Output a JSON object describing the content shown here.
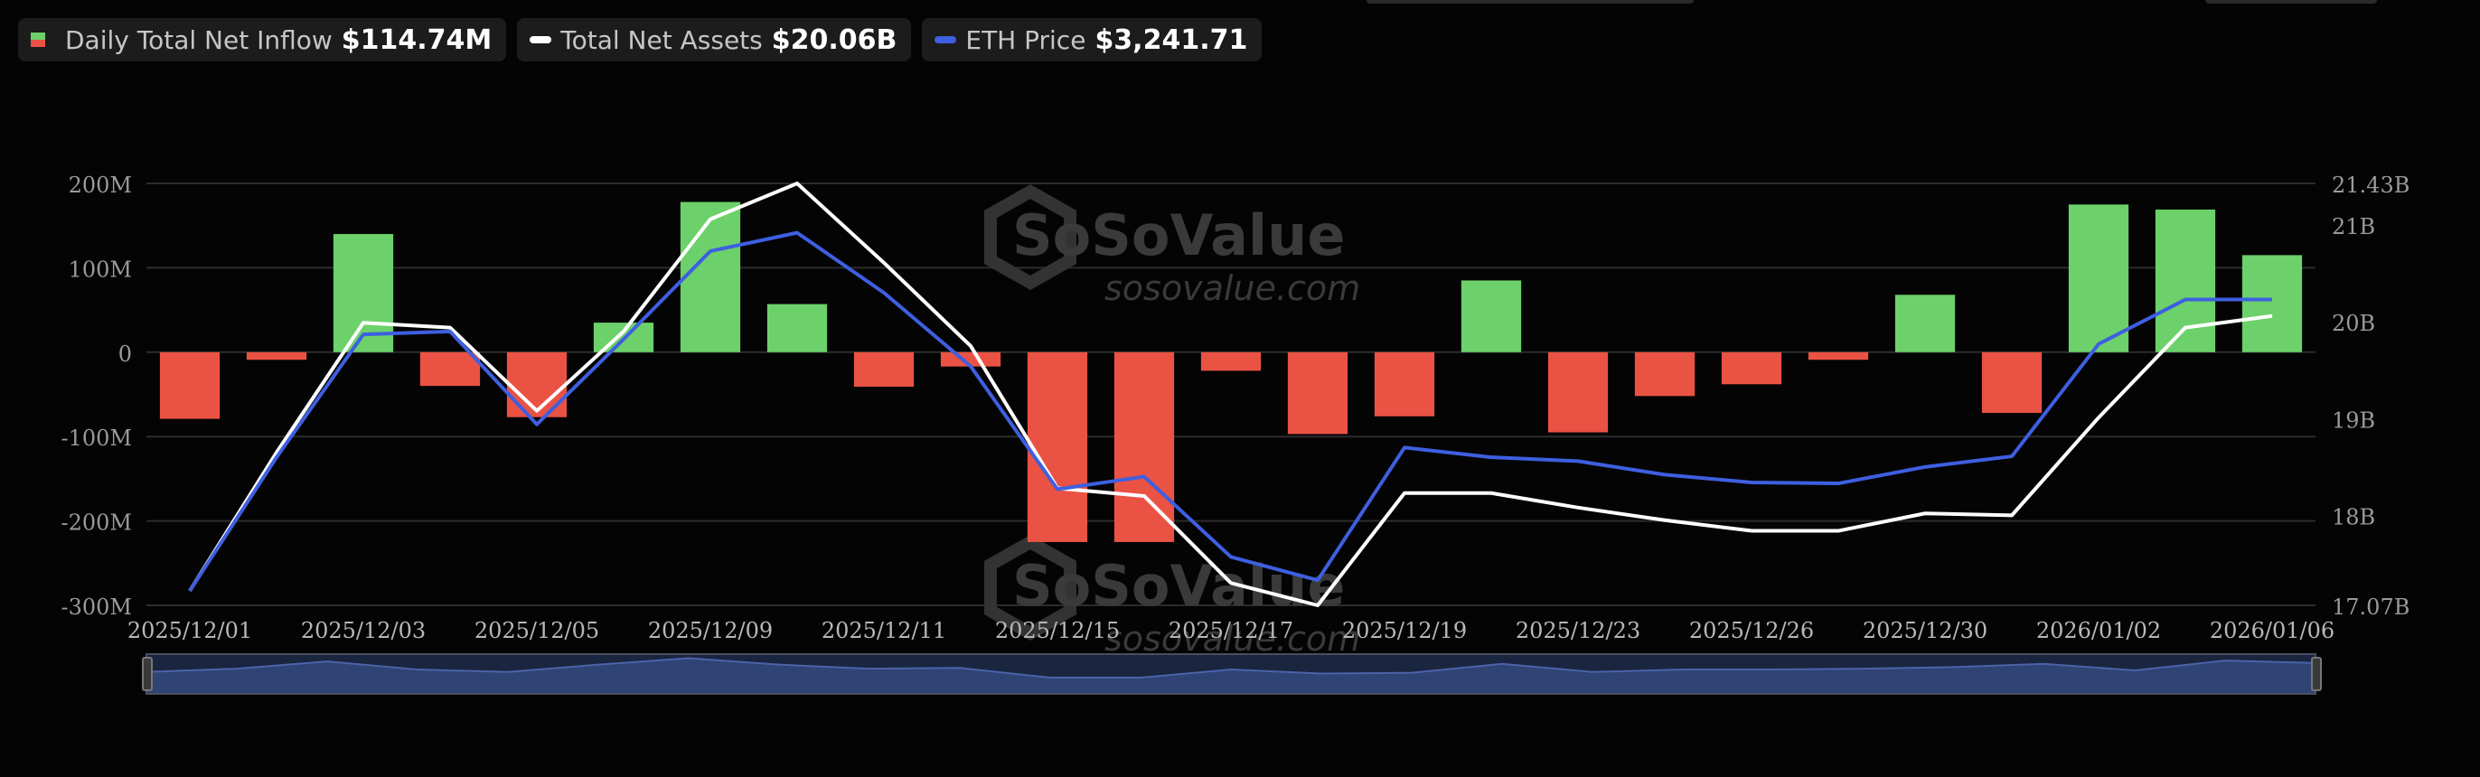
{
  "legend": {
    "inflow": {
      "label": "Daily Total Net Inflow",
      "value": "$114.74M"
    },
    "assets": {
      "label": "Total Net Assets",
      "value": "$20.06B"
    },
    "eth": {
      "label": "ETH Price",
      "value": "$3,241.71"
    }
  },
  "watermark": {
    "brand": "SoSoValue",
    "url": "sosovalue.com"
  },
  "colors": {
    "positive": "#6cd16a",
    "negative": "#ea5244",
    "assets_line": "#ffffff",
    "eth_line": "#3e5fe0",
    "background": "#040404",
    "grid": "#2c2c2c"
  },
  "chart_data": {
    "type": "bar",
    "x_tick_labels": [
      "2025/12/01",
      "2025/12/03",
      "2025/12/05",
      "2025/12/09",
      "2025/12/11",
      "2025/12/15",
      "2025/12/17",
      "2025/12/19",
      "2025/12/23",
      "2025/12/26",
      "2025/12/30",
      "2026/01/02",
      "2026/01/06"
    ],
    "categories": [
      "2025/12/01",
      "2025/12/02",
      "2025/12/03",
      "2025/12/04",
      "2025/12/05",
      "2025/12/08",
      "2025/12/09",
      "2025/12/10",
      "2025/12/11",
      "2025/12/12",
      "2025/12/15",
      "2025/12/16",
      "2025/12/17",
      "2025/12/18",
      "2025/12/19",
      "2025/12/22",
      "2025/12/23",
      "2025/12/24",
      "2025/12/26",
      "2025/12/29",
      "2025/12/30",
      "2025/12/31",
      "2026/01/02",
      "2026/01/05",
      "2026/01/06"
    ],
    "y_left": {
      "ticks": [
        200,
        100,
        0,
        -100,
        -200,
        -300
      ],
      "tick_labels": [
        "200M",
        "100M",
        "0",
        "-100M",
        "-200M",
        "-300M"
      ],
      "range": [
        -300,
        200
      ]
    },
    "y_right": {
      "ticks": [
        21.43,
        21,
        20,
        19,
        18,
        17.07
      ],
      "tick_labels": [
        "21.43B",
        "21B",
        "20B",
        "19B",
        "18B",
        "17.07B"
      ],
      "range": [
        17.07,
        21.43
      ]
    },
    "series": [
      {
        "name": "Daily Total Net Inflow",
        "type": "bar",
        "axis": "left",
        "values": [
          -79,
          -9,
          140,
          -40,
          -77,
          35,
          178,
          57,
          -41,
          -17,
          -225,
          -225,
          -22,
          -97,
          -76,
          85,
          -95,
          -52,
          -38,
          -9,
          68,
          -72,
          175,
          169,
          115
        ]
      },
      {
        "name": "Total Net Assets",
        "type": "line",
        "axis": "right",
        "values": [
          17.22,
          18.65,
          19.99,
          19.94,
          19.08,
          19.9,
          21.06,
          21.43,
          20.61,
          19.75,
          18.28,
          18.2,
          17.3,
          17.07,
          18.23,
          18.23,
          18.08,
          17.95,
          17.84,
          17.84,
          18.02,
          18.0,
          19.01,
          19.94,
          20.06
        ]
      },
      {
        "name": "ETH Price",
        "type": "line",
        "axis": "right",
        "values": [
          17.22,
          18.6,
          19.87,
          19.9,
          18.94,
          19.82,
          20.73,
          20.92,
          20.3,
          19.54,
          18.27,
          18.4,
          17.57,
          17.33,
          18.7,
          18.6,
          18.56,
          18.42,
          18.34,
          18.33,
          18.5,
          18.61,
          19.77,
          20.23,
          20.23
        ]
      }
    ],
    "navigator": {
      "values": [
        19.3,
        19.7,
        20.6,
        19.6,
        19.3,
        20.2,
        21.0,
        20.2,
        19.7,
        19.8,
        18.6,
        18.6,
        19.6,
        19.1,
        19.2,
        20.3,
        19.3,
        19.6,
        19.6,
        19.7,
        19.9,
        20.3,
        19.5,
        20.7,
        20.4
      ]
    }
  }
}
